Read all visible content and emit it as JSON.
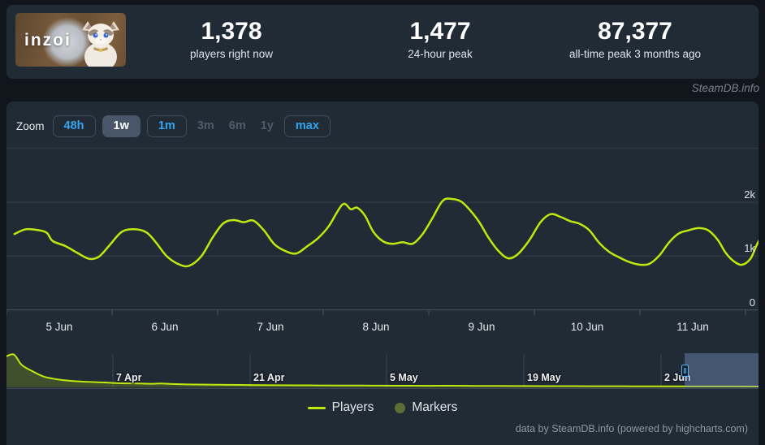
{
  "header": {
    "game_logo_text": "inzoi",
    "stats": [
      {
        "value": "1,378",
        "label": "players right now"
      },
      {
        "value": "1,477",
        "label": "24-hour peak"
      },
      {
        "value": "87,377",
        "label": "all-time peak 3 months ago"
      }
    ]
  },
  "watermark": "SteamDB.info",
  "toolbar": {
    "zoom_label": "Zoom",
    "buttons": [
      {
        "label": "48h",
        "state": "outlined"
      },
      {
        "label": "1w",
        "state": "selected"
      },
      {
        "label": "1m",
        "state": "outlined"
      },
      {
        "label": "3m",
        "state": "disabled"
      },
      {
        "label": "6m",
        "state": "disabled"
      },
      {
        "label": "1y",
        "state": "disabled"
      },
      {
        "label": "max",
        "state": "outlined"
      }
    ]
  },
  "chart_data": {
    "type": "line",
    "series_name": "Players",
    "x_unit": "hours since 5 Jun 00:00",
    "x_axis": {
      "labels": [
        "5 Jun",
        "6 Jun",
        "7 Jun",
        "8 Jun",
        "9 Jun",
        "10 Jun",
        "11 Jun"
      ],
      "hours_per_day": 24,
      "window_hours": 168
    },
    "y_axis": {
      "tick_labels": [
        "0",
        "1k",
        "2k"
      ],
      "tick_values": [
        0,
        1000,
        2000
      ],
      "gridline_values": [
        1000,
        2000,
        3000
      ],
      "min": 0,
      "max": 3060
    },
    "points": [
      [
        1.8,
        1410
      ],
      [
        4.4,
        1500
      ],
      [
        7.4,
        1480
      ],
      [
        9.2,
        1430
      ],
      [
        10.5,
        1280
      ],
      [
        13.3,
        1190
      ],
      [
        16.1,
        1060
      ],
      [
        18.8,
        950
      ],
      [
        21.0,
        990
      ],
      [
        23.4,
        1200
      ],
      [
        26.2,
        1450
      ],
      [
        29.0,
        1500
      ],
      [
        31.8,
        1440
      ],
      [
        34.0,
        1250
      ],
      [
        36.4,
        1000
      ],
      [
        39.1,
        850
      ],
      [
        41.5,
        820
      ],
      [
        44.3,
        1000
      ],
      [
        46.9,
        1350
      ],
      [
        49.3,
        1610
      ],
      [
        51.7,
        1670
      ],
      [
        53.9,
        1630
      ],
      [
        56.1,
        1660
      ],
      [
        58.5,
        1480
      ],
      [
        60.9,
        1220
      ],
      [
        63.5,
        1090
      ],
      [
        65.9,
        1050
      ],
      [
        68.3,
        1180
      ],
      [
        70.9,
        1340
      ],
      [
        73.3,
        1560
      ],
      [
        76.4,
        1960
      ],
      [
        78.3,
        1870
      ],
      [
        79.7,
        1900
      ],
      [
        81.5,
        1750
      ],
      [
        83.4,
        1450
      ],
      [
        85.7,
        1270
      ],
      [
        87.9,
        1230
      ],
      [
        90.1,
        1260
      ],
      [
        92.3,
        1230
      ],
      [
        94.5,
        1400
      ],
      [
        96.8,
        1700
      ],
      [
        99.2,
        2030
      ],
      [
        101.4,
        2060
      ],
      [
        103.4,
        2010
      ],
      [
        105.2,
        1870
      ],
      [
        107.4,
        1640
      ],
      [
        109.6,
        1340
      ],
      [
        111.8,
        1100
      ],
      [
        114.1,
        960
      ],
      [
        116.3,
        1040
      ],
      [
        118.9,
        1300
      ],
      [
        121.4,
        1630
      ],
      [
        123.7,
        1780
      ],
      [
        125.9,
        1730
      ],
      [
        128.1,
        1650
      ],
      [
        130.3,
        1600
      ],
      [
        132.5,
        1480
      ],
      [
        134.7,
        1250
      ],
      [
        137.0,
        1080
      ],
      [
        139.2,
        980
      ],
      [
        141.6,
        890
      ],
      [
        144.0,
        840
      ],
      [
        146.2,
        860
      ],
      [
        148.4,
        1010
      ],
      [
        150.6,
        1250
      ],
      [
        152.8,
        1420
      ],
      [
        155.1,
        1480
      ],
      [
        157.3,
        1520
      ],
      [
        159.5,
        1480
      ],
      [
        161.7,
        1300
      ],
      [
        163.5,
        1060
      ],
      [
        165.4,
        900
      ],
      [
        167.2,
        840
      ],
      [
        169.1,
        950
      ],
      [
        170.4,
        1180
      ],
      [
        171.7,
        1390
      ]
    ],
    "navigator": {
      "labels": [
        "7 Apr",
        "21 Apr",
        "5 May",
        "19 May",
        "2 Jun"
      ],
      "max": 87377,
      "selected_range_frac": [
        0.898,
        1.0
      ],
      "points": [
        [
          0.0,
          83000
        ],
        [
          0.01,
          87377
        ],
        [
          0.02,
          60000
        ],
        [
          0.035,
          42000
        ],
        [
          0.05,
          28000
        ],
        [
          0.07,
          20000
        ],
        [
          0.09,
          16000
        ],
        [
          0.105,
          14500
        ],
        [
          0.115,
          13500
        ],
        [
          0.13,
          12500
        ],
        [
          0.145,
          11000
        ],
        [
          0.16,
          10000
        ],
        [
          0.175,
          9600
        ],
        [
          0.19,
          9000
        ],
        [
          0.205,
          9600
        ],
        [
          0.22,
          8200
        ],
        [
          0.25,
          7000
        ],
        [
          0.28,
          6300
        ],
        [
          0.31,
          5800
        ],
        [
          0.33,
          5500
        ],
        [
          0.36,
          5100
        ],
        [
          0.4,
          4700
        ],
        [
          0.44,
          4300
        ],
        [
          0.47,
          4100
        ],
        [
          0.5,
          3900
        ],
        [
          0.53,
          3700
        ],
        [
          0.56,
          3500
        ],
        [
          0.59,
          3700
        ],
        [
          0.62,
          3200
        ],
        [
          0.65,
          3000
        ],
        [
          0.68,
          2900
        ],
        [
          0.71,
          2700
        ],
        [
          0.74,
          2600
        ],
        [
          0.77,
          2500
        ],
        [
          0.8,
          2300
        ],
        [
          0.83,
          2200
        ],
        [
          0.86,
          2100
        ],
        [
          0.89,
          1900
        ],
        [
          0.92,
          1800
        ],
        [
          0.95,
          1700
        ],
        [
          0.98,
          1500
        ],
        [
          1.0,
          1450
        ]
      ]
    }
  },
  "legend": [
    {
      "label": "Players",
      "swatch": "line",
      "color": "#c1e80e"
    },
    {
      "label": "Markers",
      "swatch": "circle",
      "color": "#5f6e34"
    }
  ],
  "footer": "data by SteamDB.info (powered by highcharts.com)",
  "colors": {
    "line": "#c1e80e",
    "line_fill": "rgba(190,230,15,0.20)",
    "accent_blue": "#35a5f0",
    "grid": "#343d47",
    "axis": "#4a545e",
    "nav_grid": "#3c4654"
  }
}
